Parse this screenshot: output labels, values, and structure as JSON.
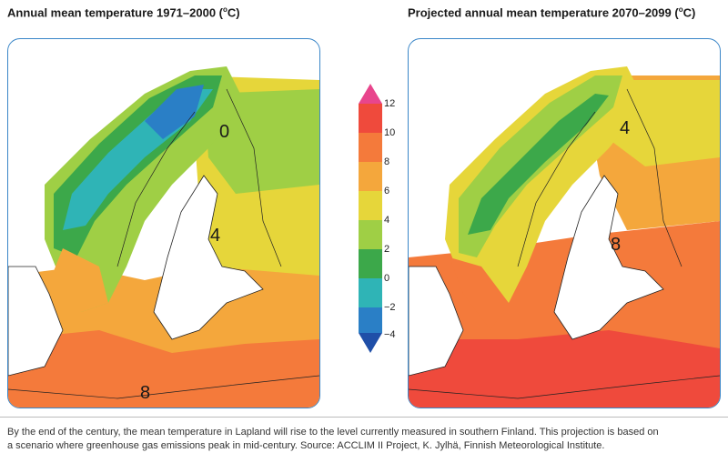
{
  "left_map": {
    "title": "Annual mean temperature 1971–2000 (",
    "unit": "o",
    "unit_suffix": "C)",
    "labels": [
      "0",
      "4",
      "8"
    ]
  },
  "right_map": {
    "title": "Projected annual mean temperature 2070–2099 (",
    "unit": "o",
    "unit_suffix": "C)",
    "labels": [
      "4",
      "8"
    ]
  },
  "legend": {
    "ticks": [
      "12",
      "10",
      "8",
      "6",
      "4",
      "2",
      "0",
      "−2",
      "−4"
    ],
    "colors": [
      "#e8458c",
      "#ef4a3c",
      "#f47a3b",
      "#f4a73c",
      "#e6d63a",
      "#9fcf45",
      "#3ca84a",
      "#2fb4b6",
      "#2a7fc6",
      "#1f4fa8"
    ]
  },
  "caption": {
    "line1": "By the end of the century, the mean temperature in Lapland will rise to the level currently measured in southern Finland. This projection is based on",
    "line2": "a scenario where greenhouse gas emissions peak in mid-century. Source: ACCLIM II Project, K. Jylhä, Finnish Meteorological Institute."
  }
}
